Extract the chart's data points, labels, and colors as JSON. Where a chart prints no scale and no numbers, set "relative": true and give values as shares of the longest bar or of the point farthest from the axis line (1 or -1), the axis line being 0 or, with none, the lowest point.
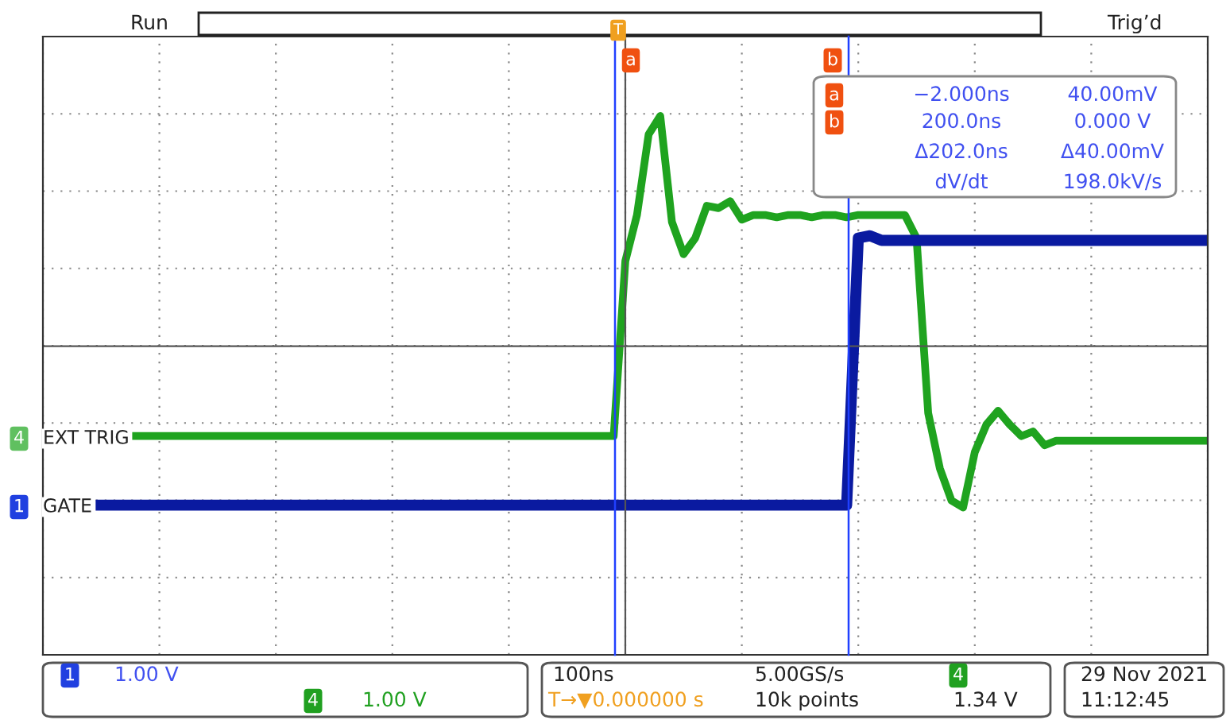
{
  "chart_data": {
    "type": "line",
    "relative": true,
    "grid": true,
    "legend": false,
    "categories": [
      null,
      null,
      null,
      null,
      null,
      null,
      null,
      null,
      null,
      null,
      null,
      null,
      null,
      null,
      null,
      null,
      null,
      null,
      null,
      null,
      null,
      null,
      null,
      null,
      null,
      null,
      null,
      null,
      null,
      null,
      null,
      null,
      null,
      null,
      null,
      null,
      null,
      null,
      null,
      null,
      null,
      null,
      null,
      null,
      null,
      null,
      null,
      null,
      null,
      null,
      null,
      null,
      null,
      null,
      null,
      null,
      null,
      null,
      null,
      null,
      null,
      null,
      null,
      null,
      null,
      null,
      null,
      null,
      null,
      null,
      null,
      null,
      null,
      null,
      null,
      null,
      null,
      null,
      null,
      null,
      null,
      null,
      null,
      null,
      null,
      null,
      null,
      null,
      null,
      null,
      null,
      null,
      null,
      null,
      null,
      null,
      null,
      null,
      null,
      null,
      null
    ],
    "series": [
      {
        "name": "EXT TRIG",
        "color": "#1fa31f",
        "values": [
          null,
          null,
          null,
          null,
          null,
          null,
          null,
          null,
          -0.39,
          -0.39,
          -0.39,
          -0.39,
          -0.39,
          -0.39,
          -0.39,
          -0.39,
          -0.39,
          -0.39,
          -0.39,
          -0.39,
          -0.39,
          -0.39,
          -0.39,
          -0.39,
          -0.39,
          -0.39,
          -0.39,
          -0.39,
          -0.39,
          -0.39,
          -0.39,
          -0.39,
          -0.39,
          -0.39,
          -0.39,
          -0.39,
          -0.39,
          -0.39,
          -0.39,
          -0.39,
          -0.39,
          -0.39,
          -0.39,
          -0.39,
          -0.39,
          -0.39,
          -0.39,
          -0.39,
          -0.39,
          -0.39,
          0.37,
          0.57,
          0.92,
          1,
          0.54,
          0.4,
          0.47,
          0.61,
          0.6,
          0.63,
          0.55,
          0.57,
          0.57,
          0.56,
          0.57,
          0.57,
          0.56,
          0.57,
          0.57,
          0.56,
          0.57,
          0.57,
          0.57,
          0.57,
          0.57,
          0.47,
          -0.29,
          -0.53,
          -0.67,
          -0.7,
          -0.46,
          -0.34,
          -0.28,
          -0.34,
          -0.39,
          -0.37,
          -0.43,
          -0.41,
          -0.41,
          -0.41,
          -0.41,
          -0.41,
          -0.41,
          -0.41,
          -0.41,
          -0.41,
          -0.41,
          -0.41,
          -0.41,
          -0.41,
          -0.41
        ]
      },
      {
        "name": "GATE",
        "color": "#0a1aa0",
        "values": [
          null,
          null,
          null,
          null,
          null,
          -0.69,
          -0.69,
          -0.69,
          -0.69,
          -0.69,
          -0.69,
          -0.69,
          -0.69,
          -0.69,
          -0.69,
          -0.69,
          -0.69,
          -0.69,
          -0.69,
          -0.69,
          -0.69,
          -0.69,
          -0.69,
          -0.69,
          -0.69,
          -0.69,
          -0.69,
          -0.69,
          -0.69,
          -0.69,
          -0.69,
          -0.69,
          -0.69,
          -0.69,
          -0.69,
          -0.69,
          -0.69,
          -0.69,
          -0.69,
          -0.69,
          -0.69,
          -0.69,
          -0.69,
          -0.69,
          -0.69,
          -0.69,
          -0.69,
          -0.69,
          -0.69,
          -0.69,
          -0.69,
          -0.69,
          -0.69,
          -0.69,
          -0.69,
          -0.69,
          -0.69,
          -0.69,
          -0.69,
          -0.69,
          -0.69,
          -0.69,
          -0.69,
          -0.69,
          -0.69,
          -0.69,
          -0.69,
          -0.69,
          -0.69,
          -0.69,
          0.47,
          0.48,
          0.46,
          0.46,
          0.46,
          0.46,
          0.46,
          0.46,
          0.46,
          0.46,
          0.46,
          0.46,
          0.46,
          0.46,
          0.46,
          0.46,
          0.46,
          0.46,
          0.46,
          0.46,
          0.46,
          0.46,
          0.46,
          0.46,
          0.46,
          0.46,
          0.46,
          0.46,
          0.46,
          0.46,
          0.46
        ]
      }
    ],
    "annotations": [
      "Run",
      "Trig’d",
      "T",
      "a",
      "b",
      "a",
      "−2.000ns",
      "40.00mV",
      "b",
      "200.0ns",
      "0.000 V",
      "Δ202.0ns",
      "Δ40.00mV",
      "dV/dt",
      "198.0kV/s",
      "1",
      "1.00 V",
      "4",
      "1.00 V",
      "100ns",
      "5.00GS/s",
      "4",
      "T→▼0.000000 s",
      "10k points",
      "1.34 V",
      "29 Nov 2021",
      "11:12:45",
      "4",
      "1"
    ]
  }
}
